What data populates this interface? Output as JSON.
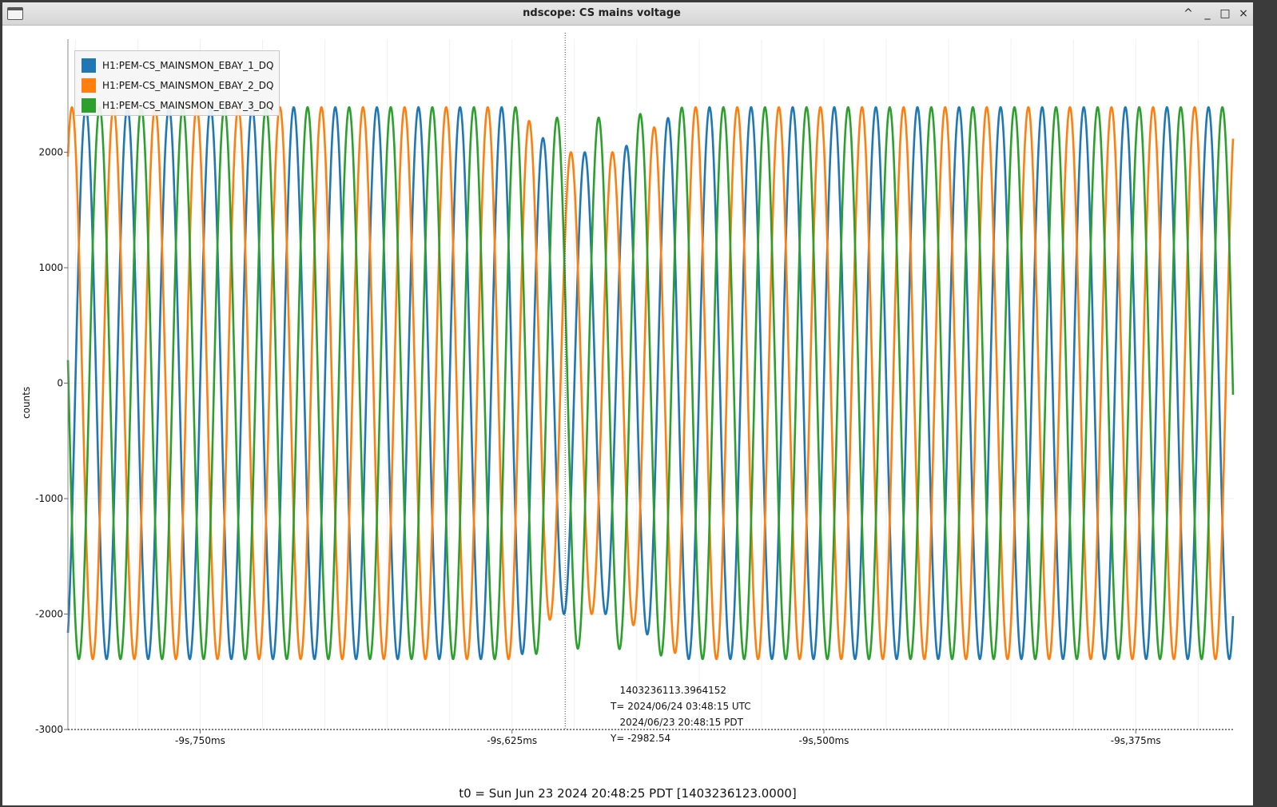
{
  "window": {
    "title": "ndscope: CS mains voltage",
    "controls": {
      "shade": "^",
      "minimize": "_",
      "maximize": "□",
      "close": "×"
    }
  },
  "legend": {
    "items": [
      {
        "label": "H1:PEM-CS_MAINSMON_EBAY_1_DQ",
        "color": "#1f77b4"
      },
      {
        "label": "H1:PEM-CS_MAINSMON_EBAY_2_DQ",
        "color": "#ff7f0e"
      },
      {
        "label": "H1:PEM-CS_MAINSMON_EBAY_3_DQ",
        "color": "#2ca02c"
      }
    ]
  },
  "chart_data": {
    "type": "line",
    "title": "",
    "xlabel": "",
    "ylabel": "counts",
    "x_unit": "s relative to t0",
    "xlim": [
      -9.803,
      -9.336
    ],
    "ylim": [
      -3000,
      2980
    ],
    "x_ticks": [
      {
        "value": -9.75,
        "label": "-9s,750ms"
      },
      {
        "value": -9.625,
        "label": "-9s,625ms"
      },
      {
        "value": -9.5,
        "label": "-9s,500ms"
      },
      {
        "value": -9.375,
        "label": "-9s,375ms"
      }
    ],
    "y_ticks": [
      {
        "value": 2000,
        "label": "2000"
      },
      {
        "value": 1000,
        "label": "1000"
      },
      {
        "value": 0,
        "label": "0"
      },
      {
        "value": -1000,
        "label": "-1000"
      },
      {
        "value": -2000,
        "label": "-2000"
      },
      {
        "value": -3000,
        "label": "-3000"
      }
    ],
    "grid": true,
    "legend_position": "top-left",
    "series": [
      {
        "name": "H1:PEM-CS_MAINSMON_EBAY_1_DQ",
        "color": "#1f77b4",
        "frequency_hz": 60,
        "phase_deg": 0,
        "amplitude": 2390,
        "dip": {
          "start": -9.6225,
          "end": -9.556,
          "min_amplitude": 2000
        }
      },
      {
        "name": "H1:PEM-CS_MAINSMON_EBAY_2_DQ",
        "color": "#ff7f0e",
        "frequency_hz": 60,
        "phase_deg": 120,
        "amplitude": 2390,
        "dip": {
          "start": -9.6225,
          "end": -9.556,
          "min_amplitude": 2000
        }
      },
      {
        "name": "H1:PEM-CS_MAINSMON_EBAY_3_DQ",
        "color": "#2ca02c",
        "frequency_hz": 60,
        "phase_deg": 240,
        "amplitude": 2390,
        "dip": {
          "start": -9.6225,
          "end": -9.556,
          "min_amplitude": 2300
        }
      }
    ],
    "cursor": {
      "x": -9.6037,
      "lines": [
        "   1403236113.3964152",
        "T= 2024/06/24 03:48:15 UTC",
        "   2024/06/23 20:48:15 PDT",
        "Y= -2982.54"
      ]
    }
  },
  "footer": {
    "t0": "t0 = Sun Jun 23 2024 20:48:25 PDT [1403236123.0000]"
  }
}
